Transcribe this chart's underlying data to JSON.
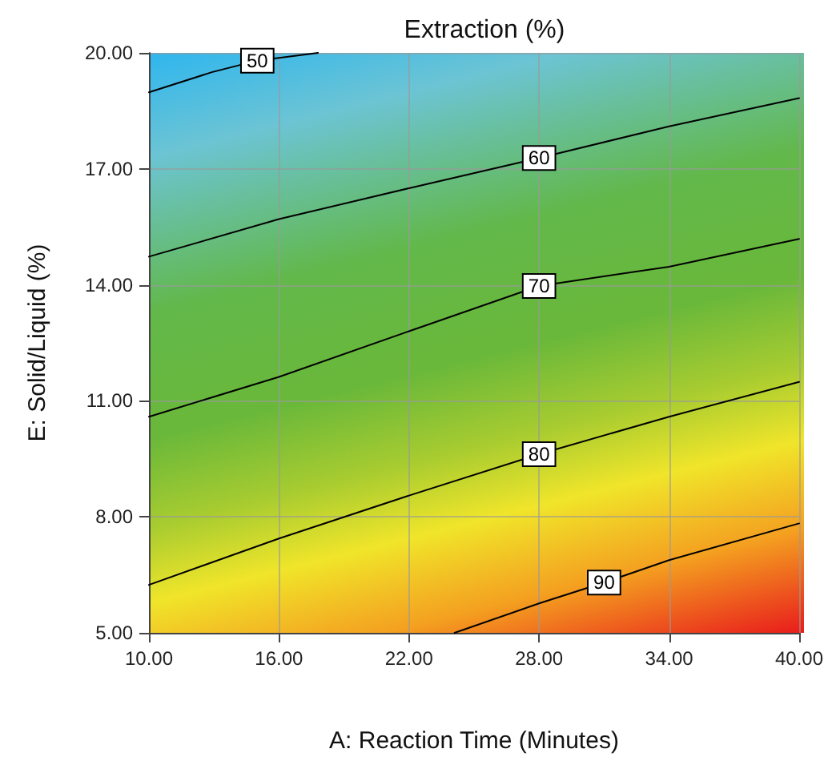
{
  "chart_data": {
    "type": "line",
    "title": "Extraction (%)",
    "xlabel": "A: Reaction Time (Minutes)",
    "ylabel": "E: Solid/Liquid (%)",
    "xlim": [
      10,
      40
    ],
    "ylim": [
      5,
      20
    ],
    "xticks": [
      {
        "value": 10,
        "label": "10.00"
      },
      {
        "value": 16,
        "label": "16.00"
      },
      {
        "value": 22,
        "label": "22.00"
      },
      {
        "value": 28,
        "label": "28.00"
      },
      {
        "value": 34,
        "label": "34.00"
      },
      {
        "value": 40,
        "label": "40.00"
      }
    ],
    "yticks": [
      {
        "value": 5,
        "label": "5.00"
      },
      {
        "value": 8,
        "label": "8.00"
      },
      {
        "value": 11,
        "label": "11.00"
      },
      {
        "value": 14,
        "label": "14.00"
      },
      {
        "value": 17,
        "label": "17.00"
      },
      {
        "value": 20,
        "label": "20.00"
      }
    ],
    "grid": true,
    "legend": false,
    "marker": "none",
    "line_style": "solid",
    "series": [
      {
        "name": "50",
        "color": "#000000",
        "x": [
          10,
          12.9,
          15,
          17.8
        ],
        "values": [
          18.98,
          19.5,
          19.8,
          20
        ]
      },
      {
        "name": "60",
        "color": "#000000",
        "x": [
          10,
          16,
          22,
          28,
          34,
          40
        ],
        "values": [
          14.73,
          15.7,
          16.5,
          17.28,
          18.1,
          18.83
        ]
      },
      {
        "name": "70",
        "color": "#000000",
        "x": [
          10,
          16,
          22,
          28,
          34,
          40
        ],
        "values": [
          10.59,
          11.62,
          12.8,
          13.97,
          14.47,
          15.19
        ]
      },
      {
        "name": "80",
        "color": "#000000",
        "x": [
          10,
          16,
          22,
          28,
          34,
          40
        ],
        "values": [
          6.24,
          7.44,
          8.55,
          9.62,
          10.59,
          11.49
        ]
      },
      {
        "name": "90",
        "color": "#000000",
        "x": [
          24.1,
          28,
          31,
          34,
          40
        ],
        "values": [
          5,
          5.76,
          6.3,
          6.88,
          7.83
        ]
      }
    ]
  }
}
